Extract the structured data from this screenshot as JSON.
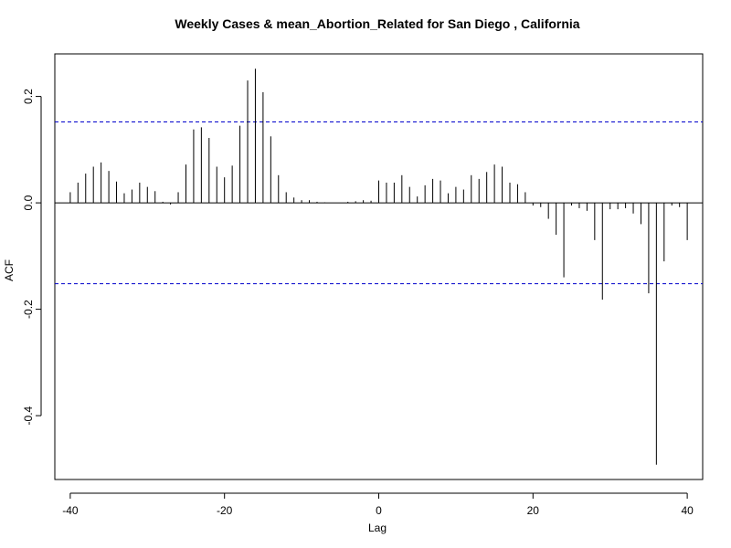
{
  "chart_data": {
    "type": "bar",
    "title": "Weekly Cases & mean_Abortion_Related for San Diego , California",
    "xlabel": "Lag",
    "ylabel": "ACF",
    "xlim": [
      -42,
      42
    ],
    "ylim": [
      -0.52,
      0.28
    ],
    "xticks": [
      -40,
      -20,
      0,
      20,
      40
    ],
    "yticks": [
      -0.4,
      -0.2,
      0.0,
      0.2
    ],
    "ytick_labels": [
      "-0.4",
      "-0.2",
      "0.0",
      "0.2"
    ],
    "confidence_bound": 0.152,
    "colors": {
      "bars": "#000000",
      "confidence": "#0000cc",
      "zero_line": "#000000",
      "frame": "#000000"
    },
    "grid": false,
    "lags": [
      -40,
      -39,
      -38,
      -37,
      -36,
      -35,
      -34,
      -33,
      -32,
      -31,
      -30,
      -29,
      -28,
      -27,
      -26,
      -25,
      -24,
      -23,
      -22,
      -21,
      -20,
      -19,
      -18,
      -17,
      -16,
      -15,
      -14,
      -13,
      -12,
      -11,
      -10,
      -9,
      -8,
      -7,
      -6,
      -5,
      -4,
      -3,
      -2,
      -1,
      0,
      1,
      2,
      3,
      4,
      5,
      6,
      7,
      8,
      9,
      10,
      11,
      12,
      13,
      14,
      15,
      16,
      17,
      18,
      19,
      20,
      21,
      22,
      23,
      24,
      25,
      26,
      27,
      28,
      29,
      30,
      31,
      32,
      33,
      34,
      35,
      36,
      37,
      38,
      39,
      40
    ],
    "acf": [
      0.02,
      0.038,
      0.055,
      0.068,
      0.076,
      0.06,
      0.04,
      0.018,
      0.025,
      0.038,
      0.03,
      0.022,
      0.002,
      -0.003,
      0.02,
      0.072,
      0.138,
      0.142,
      0.122,
      0.068,
      0.048,
      0.07,
      0.145,
      0.23,
      0.252,
      0.208,
      0.125,
      0.052,
      0.02,
      0.01,
      0.005,
      0.005,
      0.002,
      0.001,
      0.0,
      0.0,
      0.002,
      0.003,
      0.005,
      0.004,
      0.042,
      0.038,
      0.038,
      0.052,
      0.03,
      0.012,
      0.033,
      0.045,
      0.042,
      0.018,
      0.03,
      0.025,
      0.052,
      0.045,
      0.058,
      0.072,
      0.068,
      0.038,
      0.035,
      0.02,
      -0.005,
      -0.008,
      -0.03,
      -0.06,
      -0.14,
      -0.005,
      -0.01,
      -0.015,
      -0.07,
      -0.182,
      -0.012,
      -0.012,
      -0.01,
      -0.02,
      -0.04,
      -0.17,
      -0.492,
      -0.11,
      -0.005,
      -0.008,
      -0.07
    ]
  }
}
